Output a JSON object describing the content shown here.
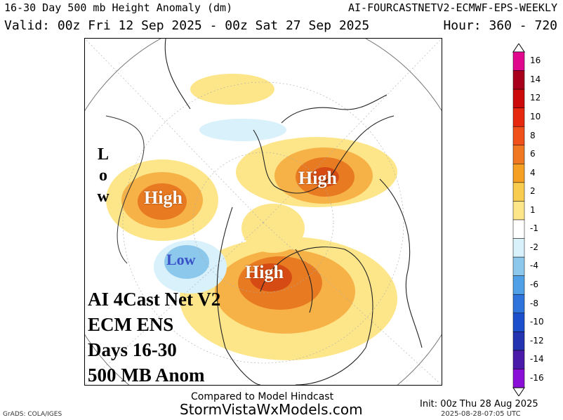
{
  "header": {
    "title": "16-30 Day 500 mb Height Anomaly (dm)",
    "model": "AI-FOURCASTNETV2-ECMWF-EPS-WEEKLY",
    "valid": "Valid: 00z Fri 12 Sep 2025 - 00z Sat 27 Sep 2025",
    "hour": "Hour: 360 - 720"
  },
  "map": {
    "labels": {
      "high_pacific": "High",
      "high_europe": "High",
      "high_canada": "High",
      "low_west": "Low",
      "low_vertical": [
        "L",
        "o",
        "w"
      ]
    },
    "overlay": [
      "AI 4Cast Net V2",
      "ECM ENS",
      "Days 16-30",
      "500 MB Anom"
    ],
    "colors": {
      "positive_light": "#fde68a",
      "positive_mid": "#f7b247",
      "positive_strong": "#e87a22",
      "positive_max": "#d64b14",
      "negative_light": "#d8f1fa",
      "negative_mid": "#8cc8ec"
    }
  },
  "colorbar": {
    "ticks": [
      "16",
      "14",
      "12",
      "10",
      "8",
      "6",
      "4",
      "2",
      "1",
      "-1",
      "-2",
      "-4",
      "-6",
      "-8",
      "-10",
      "-12",
      "-14",
      "-16"
    ],
    "colors": [
      "#e0088c",
      "#a8001c",
      "#cc0a0a",
      "#e6280e",
      "#f0501a",
      "#f07822",
      "#f5a023",
      "#f8cc4e",
      "#fde68a",
      "#ffffff",
      "#d8f1fa",
      "#8cc8ec",
      "#4fa0e6",
      "#2e74dc",
      "#1c4fcc",
      "#2433b0",
      "#4a1aa8",
      "#8a10d8"
    ]
  },
  "footer": {
    "compared": "Compared to Model Hindcast",
    "site": "StormVistaWxModels.com",
    "init": "Init: 00z Thu 28 Aug 2025",
    "stamp": "2025-08-28-07:05 UTC",
    "grads": "GrADS: COLA/IGES"
  }
}
